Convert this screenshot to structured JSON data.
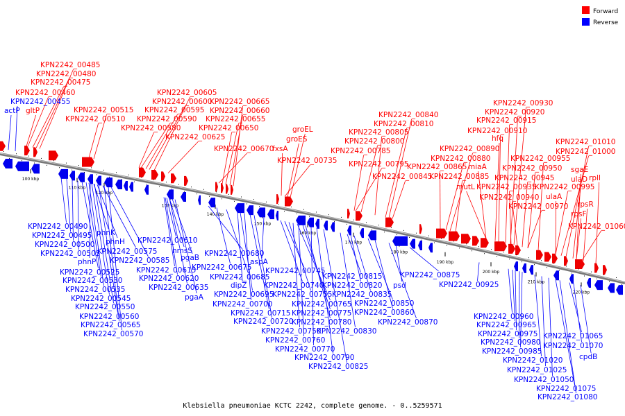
{
  "caption": "Klebsiella pneumoniae KCTC 2242, complete genome. - 0..5259571",
  "legend": {
    "items": [
      {
        "label": "Forward",
        "color": "#ff0000"
      },
      {
        "label": "Reverse",
        "color": "#0000ff"
      }
    ]
  },
  "axis_ticks": [
    "100 kbp",
    "110 kbp",
    "120 kbp",
    "130 kbp",
    "140 kbp",
    "150 kbp",
    "160 kbp",
    "170 kbp",
    "180 kbp",
    "190 kbp",
    "200 kbp",
    "210 kbp",
    "220 kbp"
  ],
  "forward_labels": [
    "KPN2242_00485",
    "KPN2242_00480",
    "KPN2242_00475",
    "KPN2242_00460",
    "gltP",
    "KPN2242_00515",
    "KPN2242_00510",
    "KPN2242_00605",
    "KPN2242_00600",
    "KPN2242_00595",
    "KPN2242_00590",
    "KPN2242_00580",
    "KPN2242_00625",
    "KPN2242_00665",
    "KPN2242_00660",
    "KPN2242_00655",
    "KPN2242_00650",
    "KPN2242_00670",
    "groEL",
    "groES",
    "fxsA",
    "KPN2242_00735",
    "KPN2242_00840",
    "KPN2242_00810",
    "KPN2242_00805",
    "KPN2242_00800",
    "KPN2242_00785",
    "KPN2242_00795",
    "KPN2242_00845",
    "KPN2242_00930",
    "KPN2242_00920",
    "KPN2242_00915",
    "KPN2242_00910",
    "hfq",
    "KPN2242_00890",
    "KPN2242_00880",
    "miaA",
    "KPN2242_00865",
    "KPN2242_00885",
    "mutL",
    "KPN2242_00955",
    "KPN2242_00950",
    "KPN2242_00945",
    "KPN2242_00935",
    "KPN2242_00940",
    "KPN2242_00970",
    "KPN2242_01010",
    "KPN2242_01000",
    "sgaE",
    "ulaD",
    "rplI",
    "KPN2242_00995",
    "ulaA",
    "rpsR",
    "rpsF",
    "KPN2242_01060"
  ],
  "reverse_labels_top": [
    "KPN2242_00455",
    "actP"
  ],
  "reverse_labels": [
    "KPN2242_00490",
    "KPN2242_00495",
    "KPN2242_00500",
    "KPN2242_00505",
    "phnK",
    "phnH",
    "phnP",
    "KPN2242_00575",
    "KPN2242_00585",
    "KPN2242_00525",
    "KPN2242_00530",
    "KPN2242_00535",
    "KPN2242_00545",
    "KPN2242_00550",
    "KPN2242_00560",
    "KPN2242_00565",
    "KPN2242_00570",
    "KPN2242_00610",
    "hmsS",
    "pgaB",
    "KPN2242_00615",
    "KPN2242_00620",
    "KPN2242_00635",
    "pgaA",
    "KPN2242_00680",
    "aspA",
    "KPN2242_00675",
    "KPN2242_00685",
    "dipZ",
    "KPN2242_00695",
    "KPN2242_00700",
    "KPN2242_00715",
    "KPN2242_00720",
    "KPN2242_00745",
    "KPN2242_00740",
    "KPN2242_00755",
    "KPN2242_00765",
    "KPN2242_00775",
    "KPN2242_00780",
    "KPN2242_00750",
    "KPN2242_00760",
    "KPN2242_00770",
    "KPN2242_00790",
    "KPN2242_00825",
    "KPN2242_00815",
    "KPN2242_00820",
    "KPN2242_00835",
    "KPN2242_00830",
    "KPN2242_00850",
    "KPN2242_00860",
    "KPN2242_00870",
    "psd",
    "KPN2242_00875",
    "KPN2242_00925",
    "KPN2242_00960",
    "KPN2242_00965",
    "KPN2242_00975",
    "KPN2242_00980",
    "KPN2242_00985",
    "KPN2242_01020",
    "KPN2242_01025",
    "KPN2242_01050",
    "KPN2242_01075",
    "KPN2242_01080",
    "KPN2242_01065",
    "KPN2242_01070",
    "cpdB"
  ]
}
